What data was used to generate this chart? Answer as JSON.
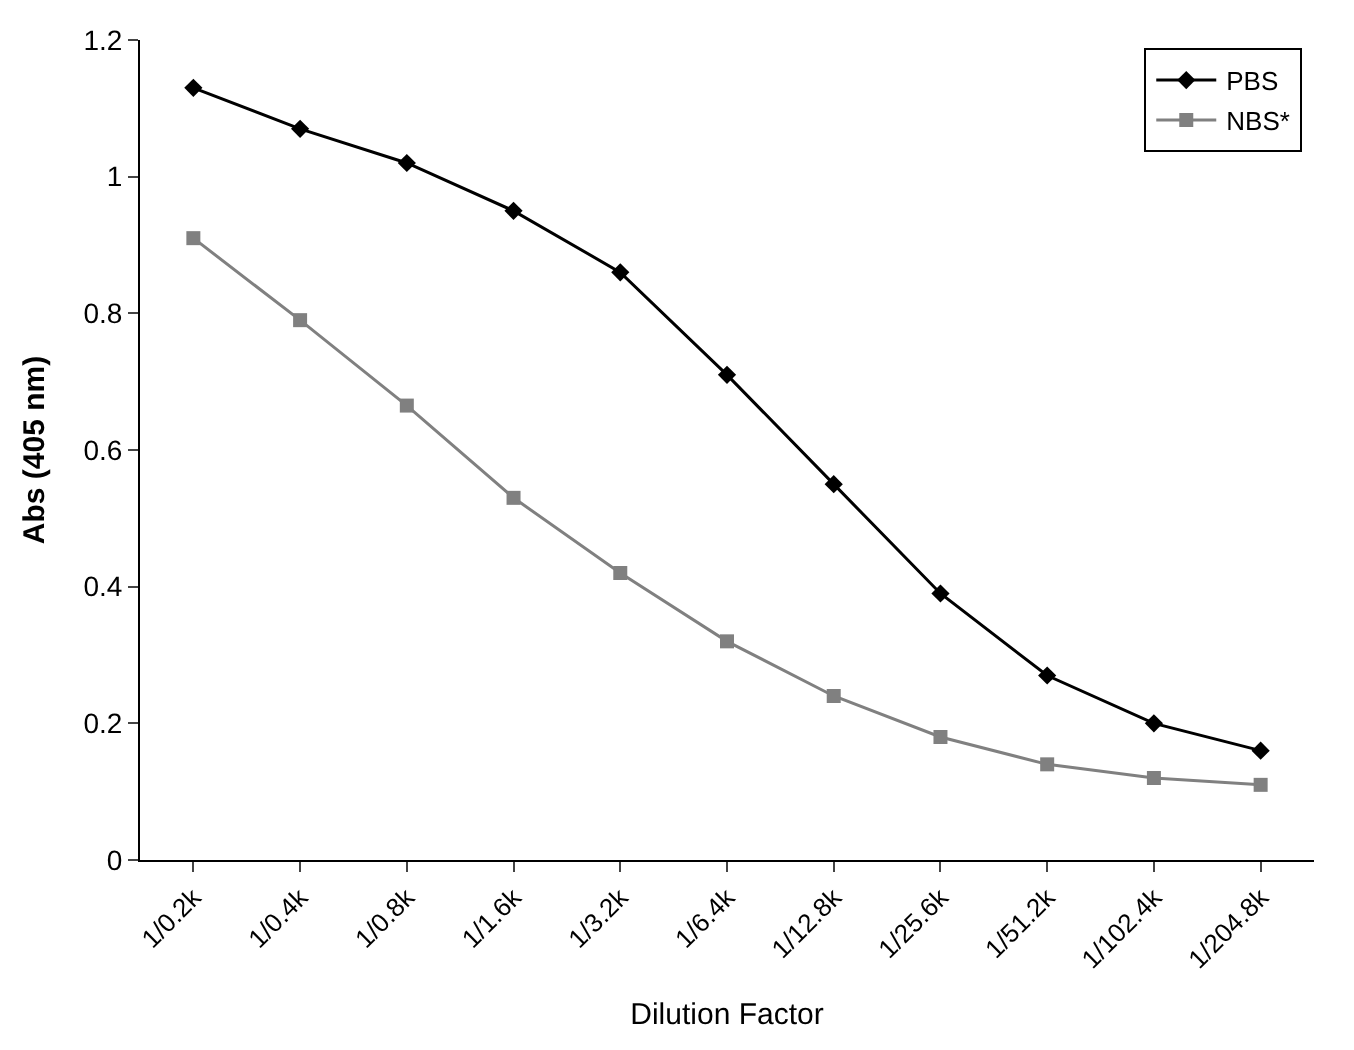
{
  "chart_data": {
    "type": "line",
    "xlabel": "Dilution Factor",
    "ylabel": "Abs (405 nm)",
    "categories": [
      "1/0.2k",
      "1/0.4k",
      "1/0.8k",
      "1/1.6k",
      "1/3.2k",
      "1/6.4k",
      "1/12.8k",
      "1/25.6k",
      "1/51.2k",
      "1/102.4k",
      "1/204.8k"
    ],
    "series": [
      {
        "name": "PBS",
        "color": "#000000",
        "marker": "diamond",
        "values": [
          1.13,
          1.07,
          1.02,
          0.95,
          0.86,
          0.71,
          0.55,
          0.39,
          0.27,
          0.2,
          0.16
        ]
      },
      {
        "name": "NBS*",
        "color": "#808080",
        "marker": "square",
        "values": [
          0.91,
          0.79,
          0.665,
          0.53,
          0.42,
          0.32,
          0.24,
          0.18,
          0.14,
          0.12,
          0.11
        ]
      }
    ],
    "ylim": [
      0,
      1.2
    ],
    "yticks": [
      0,
      0.2,
      0.4,
      0.6,
      0.8,
      1,
      1.2
    ],
    "legend": "top right",
    "line_style": "solid"
  }
}
